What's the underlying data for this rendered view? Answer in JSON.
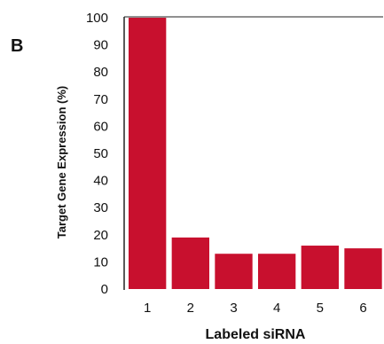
{
  "panel_label": "B",
  "chart_data": {
    "type": "bar",
    "categories": [
      "1",
      "2",
      "3",
      "4",
      "5",
      "6"
    ],
    "values": [
      100,
      19,
      13,
      13,
      16,
      15
    ],
    "ylabel": "Target Gene Expression (%)",
    "xlabel": "Labeled siRNA",
    "ylim": [
      0,
      100
    ],
    "yticks": [
      0,
      10,
      20,
      30,
      40,
      50,
      60,
      70,
      80,
      90,
      100
    ],
    "grid": false,
    "bar_color": "#c8102e"
  }
}
